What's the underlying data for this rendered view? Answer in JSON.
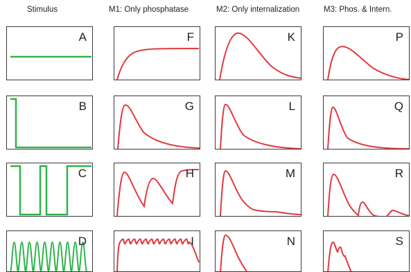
{
  "headers": [
    "Stimulus",
    "M1: Only phosphatase",
    "M2: Only internalization",
    "M3: Phos. & Intern."
  ],
  "letters": [
    [
      "A",
      "F",
      "K",
      "P"
    ],
    [
      "B",
      "G",
      "L",
      "Q"
    ],
    [
      "C",
      "H",
      "M",
      "R"
    ],
    [
      "D",
      "I",
      "N",
      "S"
    ]
  ],
  "colors": {
    "stimulus": "#2db34a",
    "response": "#e0393e",
    "frame": "#3a3a3a"
  }
}
